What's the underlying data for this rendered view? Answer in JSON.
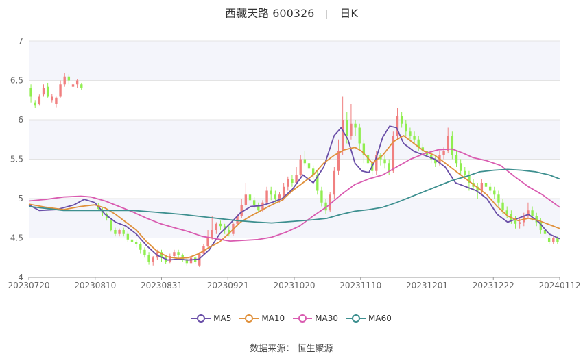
{
  "header": {
    "title": "西藏天路 600326",
    "period": "日K"
  },
  "source": "数据来源： 恒生聚源",
  "colors": {
    "up": "#f08080",
    "down": "#90ee50",
    "ma5": "#6a4fa8",
    "ma10": "#e0913c",
    "ma30": "#d95bb0",
    "ma60": "#3d8f8f"
  },
  "chart_data": {
    "type": "candlestick",
    "yticks": [
      "7",
      "6.5",
      "6",
      "5.5",
      "5",
      "4.5",
      "4"
    ],
    "ylim": [
      4,
      7
    ],
    "xticks": [
      "20230720",
      "20230810",
      "20230831",
      "20230921",
      "20231020",
      "20231110",
      "20231201",
      "20231222",
      "20240112"
    ],
    "legend": [
      "MA5",
      "MA10",
      "MA30",
      "MA60"
    ],
    "series": [
      {
        "name": "MA5",
        "values": [
          [
            0,
            4.92
          ],
          [
            3,
            4.85
          ],
          [
            8,
            4.86
          ],
          [
            13,
            4.92
          ],
          [
            16,
            4.99
          ],
          [
            19,
            4.95
          ],
          [
            22,
            4.8
          ],
          [
            25,
            4.7
          ],
          [
            28,
            4.65
          ],
          [
            31,
            4.55
          ],
          [
            34,
            4.4
          ],
          [
            37,
            4.28
          ],
          [
            40,
            4.22
          ],
          [
            43,
            4.23
          ],
          [
            46,
            4.22
          ],
          [
            49,
            4.23
          ],
          [
            52,
            4.35
          ],
          [
            55,
            4.55
          ],
          [
            58,
            4.68
          ],
          [
            61,
            4.82
          ],
          [
            64,
            4.9
          ],
          [
            67,
            4.91
          ],
          [
            70,
            4.95
          ],
          [
            73,
            5.0
          ],
          [
            76,
            5.12
          ],
          [
            79,
            5.3
          ],
          [
            82,
            5.2
          ],
          [
            85,
            5.4
          ],
          [
            88,
            5.8
          ],
          [
            90,
            5.9
          ],
          [
            92,
            5.75
          ],
          [
            94,
            5.45
          ],
          [
            96,
            5.35
          ],
          [
            98,
            5.33
          ],
          [
            100,
            5.5
          ],
          [
            102,
            5.78
          ],
          [
            104,
            5.92
          ],
          [
            106,
            5.9
          ],
          [
            108,
            5.7
          ],
          [
            111,
            5.6
          ],
          [
            114,
            5.55
          ],
          [
            117,
            5.5
          ],
          [
            120,
            5.4
          ],
          [
            123,
            5.2
          ],
          [
            126,
            5.15
          ],
          [
            129,
            5.1
          ],
          [
            132,
            5.0
          ],
          [
            135,
            4.8
          ],
          [
            138,
            4.7
          ],
          [
            141,
            4.75
          ],
          [
            144,
            4.8
          ],
          [
            147,
            4.7
          ],
          [
            150,
            4.55
          ],
          [
            153,
            4.49
          ]
        ]
      },
      {
        "name": "MA10",
        "values": [
          [
            0,
            4.93
          ],
          [
            5,
            4.89
          ],
          [
            10,
            4.86
          ],
          [
            15,
            4.9
          ],
          [
            19,
            4.92
          ],
          [
            22,
            4.88
          ],
          [
            25,
            4.8
          ],
          [
            28,
            4.7
          ],
          [
            31,
            4.6
          ],
          [
            34,
            4.45
          ],
          [
            37,
            4.33
          ],
          [
            40,
            4.26
          ],
          [
            43,
            4.24
          ],
          [
            46,
            4.25
          ],
          [
            49,
            4.3
          ],
          [
            52,
            4.38
          ],
          [
            55,
            4.45
          ],
          [
            58,
            4.57
          ],
          [
            61,
            4.7
          ],
          [
            64,
            4.78
          ],
          [
            67,
            4.85
          ],
          [
            70,
            4.92
          ],
          [
            73,
            4.98
          ],
          [
            76,
            5.1
          ],
          [
            79,
            5.2
          ],
          [
            82,
            5.3
          ],
          [
            85,
            5.45
          ],
          [
            88,
            5.55
          ],
          [
            91,
            5.62
          ],
          [
            94,
            5.65
          ],
          [
            96,
            5.6
          ],
          [
            99,
            5.45
          ],
          [
            102,
            5.55
          ],
          [
            105,
            5.72
          ],
          [
            108,
            5.8
          ],
          [
            111,
            5.7
          ],
          [
            114,
            5.6
          ],
          [
            117,
            5.55
          ],
          [
            120,
            5.45
          ],
          [
            123,
            5.35
          ],
          [
            126,
            5.25
          ],
          [
            129,
            5.15
          ],
          [
            132,
            5.05
          ],
          [
            135,
            4.9
          ],
          [
            138,
            4.78
          ],
          [
            141,
            4.72
          ],
          [
            144,
            4.75
          ],
          [
            147,
            4.72
          ],
          [
            150,
            4.67
          ],
          [
            153,
            4.62
          ]
        ]
      },
      {
        "name": "MA30",
        "values": [
          [
            0,
            4.97
          ],
          [
            5,
            4.99
          ],
          [
            10,
            5.02
          ],
          [
            15,
            5.03
          ],
          [
            18,
            5.02
          ],
          [
            22,
            4.97
          ],
          [
            26,
            4.9
          ],
          [
            30,
            4.83
          ],
          [
            34,
            4.75
          ],
          [
            38,
            4.68
          ],
          [
            42,
            4.63
          ],
          [
            46,
            4.58
          ],
          [
            50,
            4.52
          ],
          [
            54,
            4.49
          ],
          [
            58,
            4.46
          ],
          [
            62,
            4.47
          ],
          [
            66,
            4.48
          ],
          [
            70,
            4.51
          ],
          [
            74,
            4.57
          ],
          [
            78,
            4.65
          ],
          [
            82,
            4.78
          ],
          [
            86,
            4.9
          ],
          [
            90,
            5.05
          ],
          [
            94,
            5.18
          ],
          [
            98,
            5.25
          ],
          [
            102,
            5.3
          ],
          [
            106,
            5.4
          ],
          [
            110,
            5.5
          ],
          [
            114,
            5.57
          ],
          [
            118,
            5.62
          ],
          [
            122,
            5.63
          ],
          [
            125,
            5.58
          ],
          [
            128,
            5.52
          ],
          [
            132,
            5.48
          ],
          [
            136,
            5.42
          ],
          [
            140,
            5.28
          ],
          [
            144,
            5.15
          ],
          [
            148,
            5.05
          ],
          [
            153,
            4.89
          ]
        ]
      },
      {
        "name": "MA60",
        "values": [
          [
            0,
            4.9
          ],
          [
            10,
            4.85
          ],
          [
            20,
            4.85
          ],
          [
            30,
            4.85
          ],
          [
            36,
            4.83
          ],
          [
            44,
            4.8
          ],
          [
            52,
            4.76
          ],
          [
            60,
            4.72
          ],
          [
            66,
            4.7
          ],
          [
            70,
            4.69
          ],
          [
            76,
            4.71
          ],
          [
            82,
            4.73
          ],
          [
            86,
            4.75
          ],
          [
            90,
            4.8
          ],
          [
            94,
            4.84
          ],
          [
            98,
            4.86
          ],
          [
            102,
            4.89
          ],
          [
            106,
            4.95
          ],
          [
            110,
            5.02
          ],
          [
            114,
            5.09
          ],
          [
            118,
            5.16
          ],
          [
            122,
            5.23
          ],
          [
            126,
            5.28
          ],
          [
            130,
            5.34
          ],
          [
            134,
            5.36
          ],
          [
            138,
            5.37
          ],
          [
            142,
            5.36
          ],
          [
            146,
            5.34
          ],
          [
            150,
            5.3
          ],
          [
            153,
            5.25
          ]
        ]
      }
    ],
    "candles": [
      [
        6.4,
        6.3,
        6.45,
        6.22
      ],
      [
        6.22,
        6.18,
        6.25,
        6.15
      ],
      [
        6.2,
        6.3,
        6.32,
        6.18
      ],
      [
        6.32,
        6.4,
        6.45,
        6.3
      ],
      [
        6.42,
        6.3,
        6.47,
        6.28
      ],
      [
        6.25,
        6.3,
        6.33,
        6.22
      ],
      [
        6.2,
        6.28,
        6.3,
        6.16
      ],
      [
        6.3,
        6.45,
        6.5,
        6.28
      ],
      [
        6.45,
        6.55,
        6.6,
        6.42
      ],
      [
        6.55,
        6.5,
        6.58,
        6.45
      ],
      [
        6.42,
        6.45,
        6.48,
        6.38
      ],
      [
        6.45,
        6.5,
        6.52,
        6.4
      ],
      [
        6.45,
        6.4,
        6.47,
        6.38
      ],
      [
        null,
        null,
        null,
        null
      ],
      [
        null,
        null,
        null,
        null
      ],
      [
        null,
        null,
        null,
        null
      ],
      [
        4.92,
        4.87,
        4.94,
        4.85
      ],
      [
        4.85,
        4.82,
        4.88,
        4.78
      ],
      [
        4.8,
        4.75,
        4.82,
        4.72
      ],
      [
        4.72,
        4.6,
        4.75,
        4.58
      ],
      [
        4.6,
        4.55,
        4.63,
        4.52
      ],
      [
        4.55,
        4.6,
        4.62,
        4.52
      ],
      [
        4.6,
        4.55,
        4.63,
        4.52
      ],
      [
        4.55,
        4.48,
        4.58,
        4.45
      ],
      [
        4.48,
        4.45,
        4.52,
        4.43
      ],
      [
        4.45,
        4.42,
        4.48,
        4.38
      ],
      [
        4.42,
        4.35,
        4.45,
        4.3
      ],
      [
        4.35,
        4.28,
        4.38,
        4.25
      ],
      [
        4.28,
        4.2,
        4.32,
        4.16
      ],
      [
        4.2,
        4.25,
        4.27,
        4.15
      ],
      [
        4.25,
        4.32,
        4.35,
        4.22
      ],
      [
        4.32,
        4.25,
        4.35,
        4.2
      ],
      [
        4.25,
        4.2,
        4.28,
        4.17
      ],
      [
        4.2,
        4.27,
        4.3,
        4.18
      ],
      [
        4.27,
        4.32,
        4.35,
        4.25
      ],
      [
        4.32,
        4.28,
        4.35,
        4.24
      ],
      [
        4.28,
        4.23,
        4.3,
        4.2
      ],
      [
        4.23,
        4.18,
        4.26,
        4.15
      ],
      [
        4.18,
        4.25,
        4.28,
        4.15
      ],
      [
        4.25,
        4.2,
        4.28,
        4.17
      ],
      [
        4.15,
        4.3,
        4.32,
        4.13
      ],
      [
        4.3,
        4.4,
        4.42,
        4.28
      ],
      [
        4.4,
        4.5,
        4.6,
        4.38
      ],
      [
        4.5,
        4.6,
        4.78,
        4.48
      ],
      [
        4.6,
        4.68,
        4.7,
        4.55
      ],
      [
        4.68,
        4.65,
        4.72,
        4.6
      ],
      [
        4.65,
        4.6,
        4.68,
        4.55
      ],
      [
        4.6,
        4.55,
        4.65,
        4.52
      ],
      [
        4.55,
        4.68,
        4.7,
        4.53
      ],
      [
        4.68,
        4.78,
        4.8,
        4.65
      ],
      [
        4.78,
        4.92,
        5.0,
        4.75
      ],
      [
        4.92,
        5.05,
        5.2,
        4.9
      ],
      [
        5.05,
        4.98,
        5.1,
        4.92
      ],
      [
        4.98,
        4.92,
        5.02,
        4.88
      ],
      [
        4.9,
        4.85,
        4.95,
        4.82
      ],
      [
        4.85,
        4.95,
        4.98,
        4.83
      ],
      [
        4.95,
        5.1,
        5.15,
        4.93
      ],
      [
        5.1,
        5.05,
        5.15,
        4.98
      ],
      [
        5.05,
        5.0,
        5.1,
        4.95
      ],
      [
        5.0,
        5.05,
        5.08,
        4.95
      ],
      [
        5.0,
        5.15,
        5.2,
        4.98
      ],
      [
        5.15,
        5.25,
        5.28,
        5.1
      ],
      [
        5.25,
        5.2,
        5.3,
        5.15
      ],
      [
        5.2,
        5.3,
        5.4,
        5.18
      ],
      [
        5.3,
        5.5,
        5.55,
        5.28
      ],
      [
        5.5,
        5.45,
        5.6,
        5.42
      ],
      [
        5.45,
        5.38,
        5.5,
        5.32
      ],
      [
        5.38,
        5.3,
        5.42,
        5.25
      ],
      [
        5.3,
        5.1,
        5.35,
        5.05
      ],
      [
        5.1,
        4.95,
        5.15,
        4.9
      ],
      [
        4.95,
        4.85,
        5.0,
        4.8
      ],
      [
        4.85,
        5.05,
        5.08,
        4.83
      ],
      [
        5.05,
        5.35,
        5.4,
        5.0
      ],
      [
        5.35,
        5.6,
        5.75,
        5.3
      ],
      [
        5.6,
        6.0,
        6.3,
        5.55
      ],
      [
        6.0,
        5.8,
        6.1,
        5.7
      ],
      [
        5.8,
        5.95,
        6.2,
        5.75
      ],
      [
        5.95,
        5.9,
        6.0,
        5.8
      ],
      [
        5.9,
        5.7,
        5.95,
        5.6
      ],
      [
        5.7,
        5.55,
        5.75,
        5.45
      ],
      [
        5.55,
        5.45,
        5.6,
        5.38
      ],
      [
        5.45,
        5.35,
        5.5,
        5.3
      ],
      [
        5.35,
        5.55,
        5.6,
        5.3
      ],
      [
        5.55,
        5.5,
        5.58,
        5.42
      ],
      [
        5.5,
        5.45,
        5.55,
        5.38
      ],
      [
        5.45,
        5.35,
        5.5,
        5.3
      ],
      [
        5.35,
        5.8,
        5.85,
        5.33
      ],
      [
        5.8,
        6.05,
        6.15,
        5.75
      ],
      [
        6.05,
        5.95,
        6.1,
        5.9
      ],
      [
        5.95,
        5.85,
        6.0,
        5.8
      ],
      [
        5.85,
        5.8,
        5.9,
        5.75
      ],
      [
        5.8,
        5.75,
        5.85,
        5.7
      ],
      [
        5.75,
        5.65,
        5.8,
        5.6
      ],
      [
        5.65,
        5.6,
        5.7,
        5.55
      ],
      [
        5.6,
        5.55,
        5.65,
        5.5
      ],
      [
        5.55,
        5.5,
        5.6,
        5.45
      ],
      [
        5.5,
        5.45,
        5.55,
        5.4
      ],
      [
        5.45,
        5.55,
        5.6,
        5.42
      ],
      [
        5.55,
        5.6,
        5.65,
        5.5
      ],
      [
        5.6,
        5.8,
        5.9,
        5.58
      ],
      [
        5.8,
        5.55,
        5.85,
        5.5
      ],
      [
        5.55,
        5.45,
        5.6,
        5.4
      ],
      [
        5.45,
        5.35,
        5.5,
        5.3
      ],
      [
        5.35,
        5.3,
        5.4,
        5.25
      ],
      [
        5.3,
        5.2,
        5.35,
        5.1
      ],
      [
        5.2,
        5.15,
        5.25,
        5.1
      ],
      [
        5.15,
        5.1,
        5.2,
        5.0
      ],
      [
        5.1,
        5.2,
        5.25,
        5.05
      ],
      [
        5.2,
        5.15,
        5.25,
        5.1
      ],
      [
        5.15,
        5.1,
        5.2,
        5.05
      ],
      [
        5.1,
        5.05,
        5.15,
        5.0
      ],
      [
        5.05,
        4.95,
        5.1,
        4.9
      ],
      [
        4.95,
        4.85,
        5.0,
        4.8
      ],
      [
        4.85,
        4.8,
        4.9,
        4.75
      ],
      [
        4.8,
        4.72,
        4.85,
        4.68
      ],
      [
        4.72,
        4.68,
        4.78,
        4.62
      ],
      [
        4.68,
        4.7,
        4.75,
        4.62
      ],
      [
        4.7,
        4.78,
        4.82,
        4.65
      ],
      [
        4.78,
        4.85,
        4.95,
        4.75
      ],
      [
        4.85,
        4.78,
        4.9,
        4.72
      ],
      [
        4.78,
        4.7,
        4.82,
        4.65
      ],
      [
        4.7,
        4.6,
        4.75,
        4.55
      ],
      [
        4.6,
        4.55,
        4.65,
        4.5
      ],
      [
        4.5,
        4.45,
        4.55,
        4.42
      ],
      [
        4.45,
        4.5,
        4.52,
        4.42
      ],
      [
        4.5,
        4.45,
        4.52,
        4.42
      ]
    ]
  }
}
